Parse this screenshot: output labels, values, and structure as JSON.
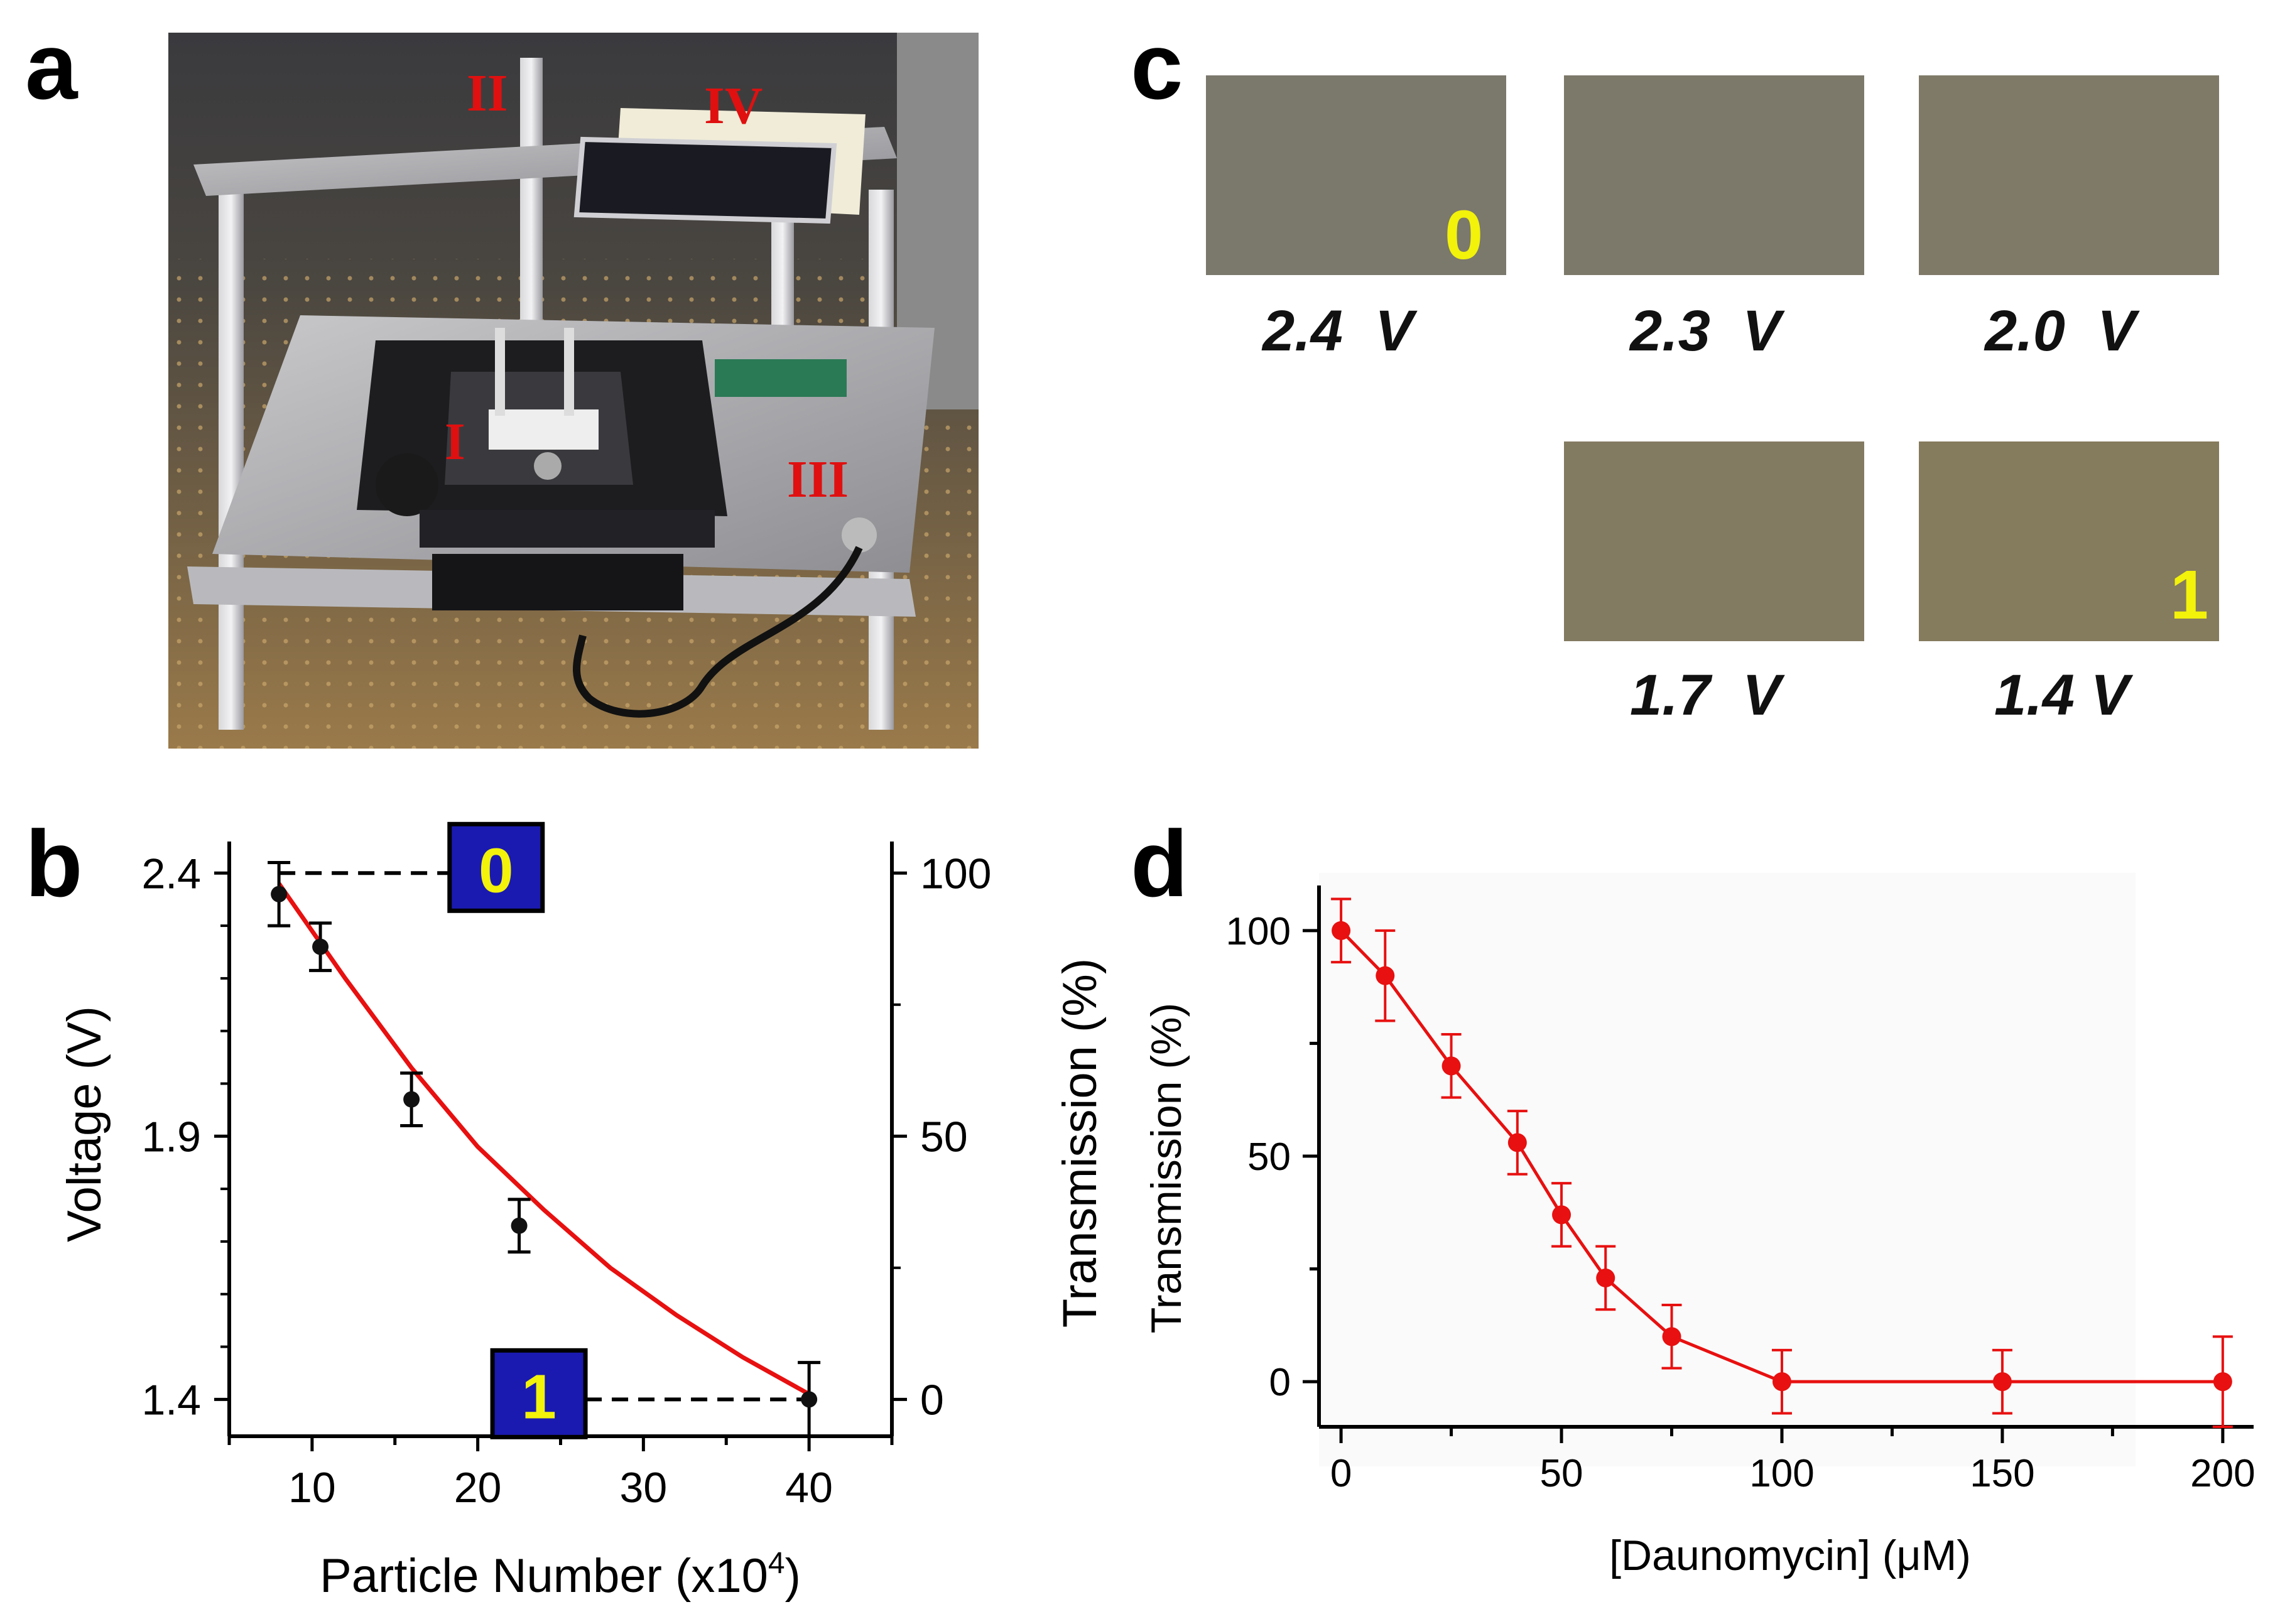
{
  "panels": {
    "a": "a",
    "b": "b",
    "c": "c",
    "d": "d"
  },
  "photo_labels": [
    "I",
    "II",
    "III",
    "IV"
  ],
  "swatch_markers": {
    "first": "0",
    "last": "1"
  },
  "swatches": [
    {
      "label": "2.4  V",
      "color": "#7b786c"
    },
    {
      "label": "2.3  V",
      "color": "#7d796a"
    },
    {
      "label": "2.0  V",
      "color": "#7f7a68"
    },
    {
      "label": "1.7  V",
      "color": "#837a62"
    },
    {
      "label": "1.4 V",
      "color": "#857b5d"
    }
  ],
  "colors": {
    "curve": "#e81010",
    "marker_box": "#1a1ab0",
    "marker_text": "#f2f20a"
  },
  "chart_data": [
    {
      "type": "scatter",
      "xlabel_pre": "Particle Number (x10",
      "xlabel_sup": "4",
      "xlabel_post": ")",
      "ylabel": "Voltage (V)",
      "y2label": "Transmission (%)",
      "xlim": [
        5,
        45
      ],
      "ylim": [
        1.33,
        2.46
      ],
      "xticks": [
        10,
        20,
        30,
        40
      ],
      "yticks": [
        1.4,
        1.9,
        2.4
      ],
      "y2ticks": [
        {
          "label": "100",
          "v": 2.4
        },
        {
          "label": "50",
          "v": 1.9
        },
        {
          "label": "0",
          "v": 1.4
        }
      ],
      "points": [
        {
          "x": 8,
          "y": 2.36,
          "err": 0.06
        },
        {
          "x": 10.5,
          "y": 2.26,
          "err": 0.045
        },
        {
          "x": 16,
          "y": 1.97,
          "err": 0.05
        },
        {
          "x": 22.5,
          "y": 1.73,
          "err": 0.05
        },
        {
          "x": 40,
          "y": 1.4,
          "err": 0.07
        }
      ],
      "fit": [
        [
          8,
          2.38
        ],
        [
          12,
          2.2
        ],
        [
          16,
          2.03
        ],
        [
          20,
          1.88
        ],
        [
          24,
          1.76
        ],
        [
          28,
          1.65
        ],
        [
          32,
          1.56
        ],
        [
          36,
          1.48
        ],
        [
          40,
          1.41
        ]
      ],
      "markers": [
        {
          "label": "0",
          "y": 2.4,
          "line_from_x": 8,
          "line_to_x": 18.3
        },
        {
          "label": "1",
          "y": 1.4,
          "line_from_x": 26.5,
          "line_to_x": 40
        }
      ]
    },
    {
      "type": "line",
      "xlabel": "[Daunomycin] (μM)",
      "ylabel": "Transmission (%)",
      "xlim": [
        -5,
        207
      ],
      "ylim": [
        -10,
        110
      ],
      "xticks": [
        0,
        50,
        100,
        150,
        200
      ],
      "yticks": [
        0,
        50,
        100
      ],
      "series": [
        {
          "x": [
            0,
            10,
            25,
            40,
            50,
            60,
            75,
            100,
            150,
            200
          ],
          "y": [
            100,
            90,
            70,
            53,
            37,
            23,
            10,
            0,
            0,
            0
          ],
          "err": [
            7,
            10,
            7,
            7,
            7,
            7,
            7,
            7,
            7,
            10
          ]
        }
      ]
    }
  ]
}
